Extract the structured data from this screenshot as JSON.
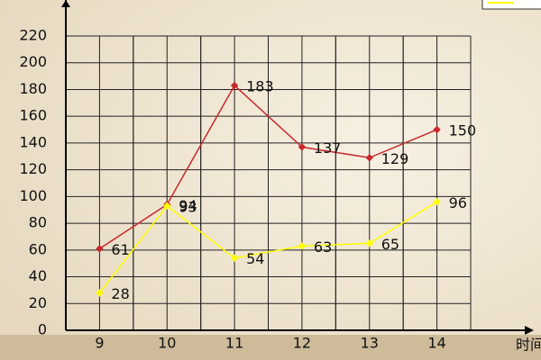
{
  "chart_data": {
    "type": "line",
    "x": [
      9,
      10,
      11,
      12,
      13,
      14
    ],
    "xlim": [
      8.5,
      14.5
    ],
    "xticks": [
      9,
      10,
      11,
      12,
      13,
      14
    ],
    "ylim": [
      0,
      220
    ],
    "yticks": [
      0,
      20,
      40,
      60,
      80,
      100,
      120,
      140,
      160,
      180,
      200,
      220
    ],
    "xlabel": "时间",
    "grid": true,
    "series": [
      {
        "color": "#c8282c",
        "values": [
          61,
          94,
          183,
          137,
          129,
          150
        ]
      },
      {
        "color": "#ffff00",
        "values": [
          28,
          93,
          54,
          63,
          65,
          96
        ]
      }
    ]
  }
}
